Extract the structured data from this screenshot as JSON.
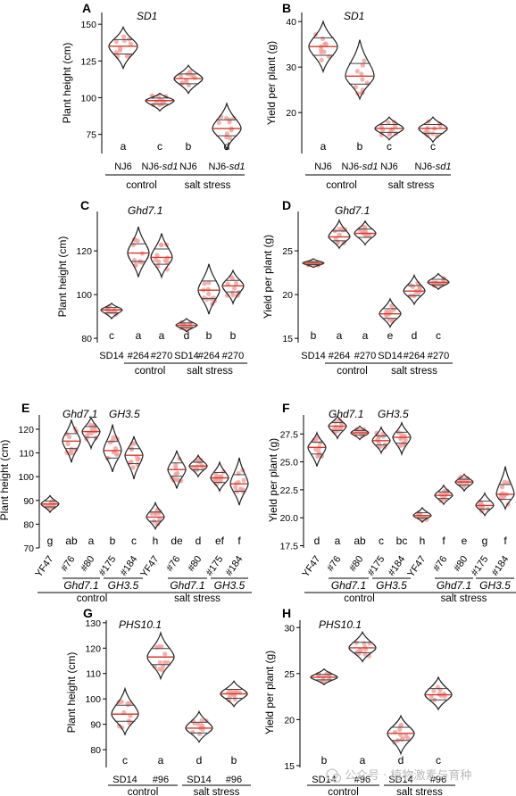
{
  "colors": {
    "violin": "#222222",
    "point": "#f3a3a0",
    "line": "#d33a2c",
    "watermark": "#bbbbbb"
  },
  "watermark": {
    "text": "公众号 · 植物激素与育种",
    "icon": "wechat-icon"
  },
  "chart_data": [
    {
      "panel": "A",
      "type": "violin",
      "gene_label": "SD1",
      "ylabel": "Plant height (cm)",
      "ylim": [
        62,
        158
      ],
      "yticks": [
        75,
        100,
        125,
        150
      ],
      "categories": [
        "NJ6",
        "NJ6-sd1",
        "NJ6",
        "NJ6-sd1"
      ],
      "letters": [
        "a",
        "c",
        "b",
        "d"
      ],
      "groups": [
        {
          "label": "control",
          "span": [
            0,
            1
          ]
        },
        {
          "label": "salt stress",
          "span": [
            2,
            3
          ]
        }
      ],
      "values": [
        135,
        98,
        113,
        79
      ],
      "ranges": [
        [
          120,
          148
        ],
        [
          91,
          103
        ],
        [
          103,
          122
        ],
        [
          65,
          96
        ]
      ]
    },
    {
      "panel": "B",
      "type": "violin",
      "gene_label": "SD1",
      "ylabel": "Yield per plant (g)",
      "ylim": [
        11,
        42
      ],
      "yticks": [
        20,
        30,
        40
      ],
      "categories": [
        "NJ6",
        "NJ6-sd1",
        "NJ6",
        "NJ6-sd1"
      ],
      "letters": [
        "a",
        "b",
        "c",
        "c"
      ],
      "groups": [
        {
          "label": "control",
          "span": [
            0,
            1
          ]
        },
        {
          "label": "salt stress",
          "span": [
            2,
            3
          ]
        }
      ],
      "values": [
        34.5,
        28,
        16.5,
        16.5
      ],
      "ranges": [
        [
          29,
          40
        ],
        [
          23,
          36
        ],
        [
          14,
          19
        ],
        [
          13.5,
          19
        ]
      ]
    },
    {
      "panel": "C",
      "type": "violin",
      "gene_label": "Ghd7.1",
      "ylabel": "Plant height (cm)",
      "ylim": [
        78,
        138
      ],
      "yticks": [
        80,
        100,
        120
      ],
      "categories": [
        "SD14",
        "#264",
        "#270",
        "SD14",
        "#264",
        "#270"
      ],
      "letters": [
        "c",
        "a",
        "a",
        "d",
        "b",
        "b"
      ],
      "groups": [
        {
          "label": "control",
          "span": [
            1,
            2
          ]
        },
        {
          "label": "salt stress",
          "span": [
            3,
            5
          ]
        }
      ],
      "values": [
        93,
        119,
        117,
        86,
        102,
        104
      ],
      "ranges": [
        [
          89,
          96
        ],
        [
          108,
          131
        ],
        [
          108,
          128
        ],
        [
          83,
          89
        ],
        [
          91,
          114
        ],
        [
          96,
          111
        ]
      ]
    },
    {
      "panel": "D",
      "type": "violin",
      "gene_label": "Ghd7.1",
      "ylabel": "Yield per plant (g)",
      "ylim": [
        14.5,
        29.5
      ],
      "yticks": [
        15,
        20,
        25
      ],
      "categories": [
        "SD14",
        "#264",
        "#270",
        "SD14",
        "#264",
        "#270"
      ],
      "letters": [
        "b",
        "a",
        "a",
        "e",
        "d",
        "c"
      ],
      "groups": [
        {
          "label": "control",
          "span": [
            1,
            2
          ]
        },
        {
          "label": "salt stress",
          "span": [
            3,
            5
          ]
        }
      ],
      "values": [
        23.6,
        26.6,
        27,
        17.8,
        20.4,
        21.4
      ],
      "ranges": [
        [
          23.1,
          24.1
        ],
        [
          25.3,
          28.5
        ],
        [
          25.7,
          28.4
        ],
        [
          16.3,
          19.5
        ],
        [
          18.9,
          22.2
        ],
        [
          20.6,
          22.4
        ]
      ]
    },
    {
      "panel": "E",
      "type": "violin",
      "gene_labels": [
        "Ghd7.1",
        "GH3.5"
      ],
      "ylabel": "Plant height (cm)",
      "ylim": [
        70,
        126
      ],
      "yticks": [
        70,
        80,
        90,
        100,
        110,
        120
      ],
      "categories": [
        "YF47",
        "#76",
        "#80",
        "#175",
        "#184",
        "YF47",
        "#76",
        "#80",
        "#175",
        "#184"
      ],
      "letters": [
        "g",
        "ab",
        "a",
        "b",
        "c",
        "h",
        "de",
        "d",
        "ef",
        "f"
      ],
      "sub_groups": [
        {
          "label": "Ghd7.1",
          "span": [
            1,
            2
          ]
        },
        {
          "label": "GH3.5",
          "span": [
            3,
            4
          ]
        },
        {
          "label": "Ghd7.1",
          "span": [
            6,
            7
          ]
        },
        {
          "label": "GH3.5",
          "span": [
            8,
            9
          ]
        }
      ],
      "groups": [
        {
          "label": "control",
          "span": [
            0,
            4
          ]
        },
        {
          "label": "salt stress",
          "span": [
            5,
            9
          ]
        }
      ],
      "values": [
        88.5,
        115,
        119,
        111,
        109,
        83,
        103,
        104.5,
        99.5,
        97
      ],
      "ranges": [
        [
          85,
          92
        ],
        [
          106,
          124
        ],
        [
          112,
          125
        ],
        [
          102,
          122
        ],
        [
          99,
          117
        ],
        [
          78,
          89
        ],
        [
          95,
          111
        ],
        [
          100,
          109
        ],
        [
          94,
          106
        ],
        [
          88,
          108
        ]
      ]
    },
    {
      "panel": "F",
      "type": "violin",
      "gene_labels": [
        "Ghd7.1",
        "GH3.5"
      ],
      "ylabel": "Yield per plant (g)",
      "ylim": [
        17.3,
        29.2
      ],
      "yticks": [
        17.5,
        20.0,
        22.5,
        25.0,
        27.5
      ],
      "categories": [
        "YF47",
        "#76",
        "#80",
        "#175",
        "#184",
        "YF47",
        "#76",
        "#80",
        "#175",
        "#184"
      ],
      "letters": [
        "d",
        "a",
        "ab",
        "c",
        "bc",
        "h",
        "f",
        "e",
        "g",
        "f"
      ],
      "sub_groups": [
        {
          "label": "Ghd7.1",
          "span": [
            1,
            2
          ]
        },
        {
          "label": "GH3.5",
          "span": [
            3,
            4
          ]
        },
        {
          "label": "Ghd7.1",
          "span": [
            6,
            7
          ]
        },
        {
          "label": "GH3.5",
          "span": [
            8,
            9
          ]
        }
      ],
      "groups": [
        {
          "label": "control",
          "span": [
            0,
            4
          ]
        },
        {
          "label": "salt stress",
          "span": [
            5,
            9
          ]
        }
      ],
      "values": [
        26.3,
        28.2,
        27.6,
        26.9,
        27.2,
        20.2,
        22,
        23.2,
        21.1,
        22.1
      ],
      "ranges": [
        [
          24.6,
          27.6
        ],
        [
          27.1,
          29.1
        ],
        [
          27,
          28.2
        ],
        [
          25.8,
          28.1
        ],
        [
          25.7,
          28.5
        ],
        [
          19.6,
          20.9
        ],
        [
          21.2,
          22.9
        ],
        [
          22.4,
          23.9
        ],
        [
          20.2,
          22.2
        ],
        [
          20.8,
          24.6
        ]
      ]
    },
    {
      "panel": "G",
      "type": "violin",
      "gene_label": "PHS10.1",
      "ylabel": "Plant height (cm)",
      "ylim": [
        73,
        131
      ],
      "yticks": [
        80,
        90,
        100,
        110,
        120,
        130
      ],
      "categories": [
        "SD14",
        "#96",
        "SD14",
        "#96"
      ],
      "letters": [
        "c",
        "a",
        "d",
        "b"
      ],
      "groups": [
        {
          "label": "control",
          "span": [
            0,
            1
          ]
        },
        {
          "label": "salt stress",
          "span": [
            2,
            3
          ]
        }
      ],
      "values": [
        94,
        116.5,
        88.5,
        102
      ],
      "ranges": [
        [
          86,
          104
        ],
        [
          108,
          126
        ],
        [
          83,
          95
        ],
        [
          97,
          107
        ]
      ]
    },
    {
      "panel": "H",
      "type": "violin",
      "gene_label": "PHS10.1",
      "ylabel": "Yield per plant (g)",
      "ylim": [
        14.8,
        30.8
      ],
      "yticks": [
        15,
        20,
        25,
        30
      ],
      "categories": [
        "SD14",
        "#96",
        "SD14",
        "#96"
      ],
      "letters": [
        "b",
        "a",
        "d",
        "c"
      ],
      "groups": [
        {
          "label": "control",
          "span": [
            0,
            1
          ]
        },
        {
          "label": "salt stress",
          "span": [
            2,
            3
          ]
        }
      ],
      "values": [
        24.6,
        27.8,
        18.5,
        22.7
      ],
      "ranges": [
        [
          23.8,
          25.5
        ],
        [
          26.3,
          29.5
        ],
        [
          16.3,
          20.4
        ],
        [
          21.1,
          24.6
        ]
      ]
    }
  ]
}
